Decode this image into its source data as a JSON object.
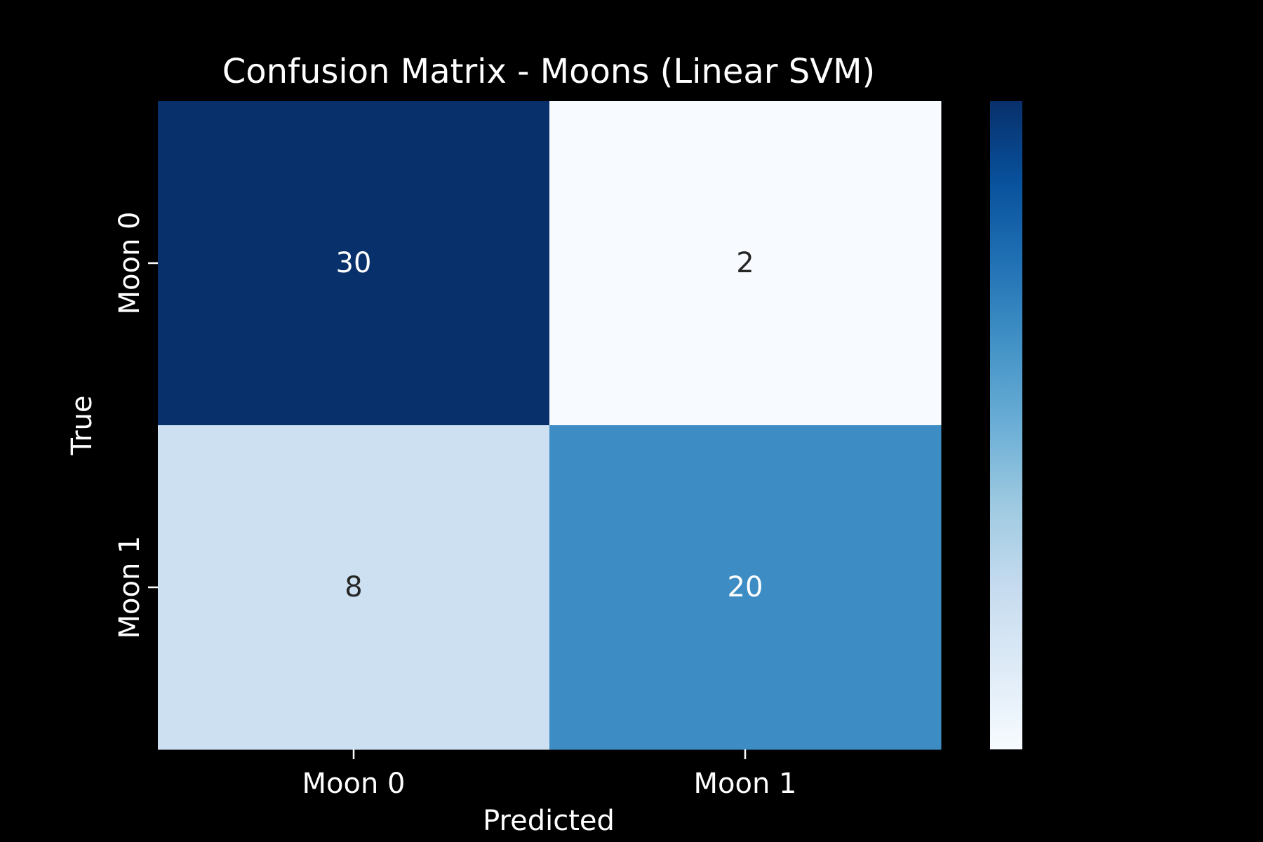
{
  "chart_data": {
    "type": "heatmap",
    "title": "Confusion Matrix - Moons (Linear SVM)",
    "xlabel": "Predicted",
    "ylabel": "True",
    "x_categories": [
      "Moon 0",
      "Moon 1"
    ],
    "y_categories": [
      "Moon 0",
      "Moon 1"
    ],
    "values": [
      [
        30,
        2
      ],
      [
        8,
        20
      ]
    ],
    "colormap": "Blues",
    "value_range": [
      2,
      30
    ],
    "colorbar": true,
    "colorbar_ticks": [],
    "grid": false,
    "colors": {
      "background": "#000000",
      "text_light": "#ffffff",
      "text_dark": "#262626",
      "cmap_low": "#f7fbff",
      "cmap_high": "#08306b"
    }
  }
}
